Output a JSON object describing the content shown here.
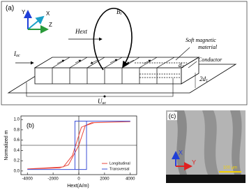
{
  "panel_a": {
    "label": "(a)",
    "axes": {
      "y": "Y",
      "x": "X",
      "z": "Z"
    },
    "hext": "Hext",
    "bt": {
      "main": "B",
      "sub": "t"
    },
    "material": [
      "Soft magnetic",
      "material"
    ],
    "conductor": "Conductor",
    "iac": {
      "main": "I",
      "sub": "ac"
    },
    "uac": {
      "main": "U",
      "sub": "ac"
    },
    "d2": {
      "main": "d",
      "sub": "2"
    },
    "d1": {
      "main": "2d",
      "sub": "1"
    }
  },
  "chart_data": {
    "type": "line",
    "label": "(b)",
    "x_label": "Hext(A/m)",
    "y_label": "Normalized m",
    "xlim": [
      -4500,
      4500
    ],
    "xticks": [
      -4000,
      -2000,
      0,
      2000,
      4000
    ],
    "ylim": [
      -0.07,
      1.07
    ],
    "yticks": [
      {
        "value": 0,
        "label": "0.0"
      },
      0.2,
      0.4,
      0.6,
      0.8,
      {
        "value": 1,
        "label": "1.0"
      }
    ],
    "hline": 0.5,
    "vline": 0,
    "legend": "lower right",
    "series": [
      {
        "name": "Longitudinal",
        "color": "#e8453c",
        "x": [
          -4000,
          -1500,
          -800,
          0,
          500,
          1200,
          4000,
          1000,
          200,
          -500,
          -1200,
          -4000
        ],
        "values": [
          0.04,
          0.06,
          0.12,
          0.5,
          0.88,
          0.94,
          0.96,
          0.94,
          0.85,
          0.3,
          0.08,
          0.04
        ]
      },
      {
        "name": "Transversal",
        "color": "#3b4fd6",
        "x": [
          -4000,
          600,
          600,
          4000,
          -300,
          -300,
          -4000
        ],
        "values": [
          0.03,
          0.03,
          0.97,
          0.97,
          0.97,
          0.03,
          0.03
        ]
      }
    ]
  },
  "panel_c": {
    "label": "(c)",
    "x": "X",
    "y": "Y",
    "scale": "100 μm"
  }
}
